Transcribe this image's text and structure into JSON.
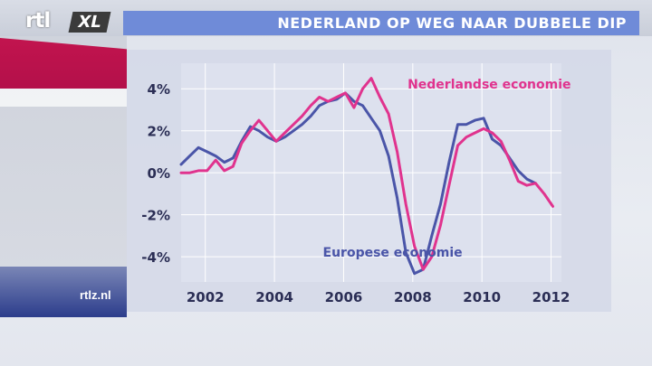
{
  "header": {
    "logo_text": "rtl",
    "logo_badge": "XL",
    "title": "NEDERLAND OP WEG NAAR DUBBELE DIP"
  },
  "footer": {
    "site": "rtlz.nl"
  },
  "colors": {
    "nl": "#e0338e",
    "eu": "#4a55a8",
    "title_bar": "#6f8bd8"
  },
  "chart_data": {
    "type": "line",
    "title": "NEDERLAND OP WEG NAAR DUBBELE DIP",
    "xlabel": "",
    "ylabel": "",
    "xlim": [
      2001.3,
      2012.3
    ],
    "ylim": [
      -5.2,
      5
    ],
    "x_ticks": [
      2002,
      2004,
      2006,
      2008,
      2010,
      2012
    ],
    "x_tick_labels": [
      "2002",
      "2004",
      "2006",
      "2008",
      "2010",
      "2012"
    ],
    "y_ticks": [
      4,
      2,
      0,
      -2,
      -4
    ],
    "y_tick_labels": [
      "4%",
      "2%",
      "0%",
      "-2%",
      "-4%"
    ],
    "series": [
      {
        "name": "Nederlandse economie",
        "x": [
          2001.3,
          2001.55,
          2001.8,
          2002.05,
          2002.3,
          2002.55,
          2002.8,
          2003.05,
          2003.3,
          2003.55,
          2003.8,
          2004.05,
          2004.3,
          2004.55,
          2004.8,
          2005.05,
          2005.3,
          2005.55,
          2005.8,
          2006.05,
          2006.3,
          2006.55,
          2006.8,
          2007.05,
          2007.3,
          2007.55,
          2007.8,
          2008.05,
          2008.3,
          2008.55,
          2008.8,
          2009.05,
          2009.3,
          2009.55,
          2009.8,
          2010.05,
          2010.3,
          2010.55,
          2010.8,
          2011.05,
          2011.3,
          2011.55,
          2011.8,
          2012.05
        ],
        "y": [
          0.0,
          0.0,
          0.1,
          0.1,
          0.6,
          0.1,
          0.3,
          1.4,
          2.0,
          2.5,
          2.0,
          1.5,
          1.9,
          2.3,
          2.7,
          3.2,
          3.6,
          3.4,
          3.6,
          3.8,
          3.1,
          4.0,
          4.5,
          3.6,
          2.8,
          1.0,
          -1.5,
          -3.5,
          -4.6,
          -4.0,
          -2.5,
          -0.6,
          1.3,
          1.7,
          1.9,
          2.1,
          1.9,
          1.5,
          0.6,
          -0.4,
          -0.6,
          -0.5,
          -1.0,
          -1.6
        ]
      },
      {
        "name": "Europese economie",
        "x": [
          2001.3,
          2001.55,
          2001.8,
          2002.05,
          2002.3,
          2002.55,
          2002.8,
          2003.05,
          2003.3,
          2003.55,
          2003.8,
          2004.05,
          2004.3,
          2004.55,
          2004.8,
          2005.05,
          2005.3,
          2005.55,
          2005.8,
          2006.05,
          2006.3,
          2006.55,
          2006.8,
          2007.05,
          2007.3,
          2007.55,
          2007.8,
          2008.05,
          2008.3,
          2008.55,
          2008.8,
          2009.05,
          2009.3,
          2009.55,
          2009.8,
          2010.05,
          2010.3,
          2010.55,
          2010.8,
          2011.05,
          2011.3,
          2011.55
        ],
        "y": [
          0.4,
          0.8,
          1.2,
          1.0,
          0.8,
          0.5,
          0.7,
          1.5,
          2.2,
          2.0,
          1.7,
          1.5,
          1.7,
          2.0,
          2.3,
          2.7,
          3.2,
          3.4,
          3.5,
          3.8,
          3.4,
          3.2,
          2.6,
          2.0,
          0.8,
          -1.2,
          -3.8,
          -4.8,
          -4.6,
          -3.0,
          -1.5,
          0.5,
          2.3,
          2.3,
          2.5,
          2.6,
          1.6,
          1.3,
          0.7,
          0.1,
          -0.3,
          -0.5
        ]
      }
    ],
    "annotations": [
      {
        "text": "Nederlandse economie",
        "series": 0
      },
      {
        "text": "Europese economie",
        "series": 1
      }
    ]
  }
}
